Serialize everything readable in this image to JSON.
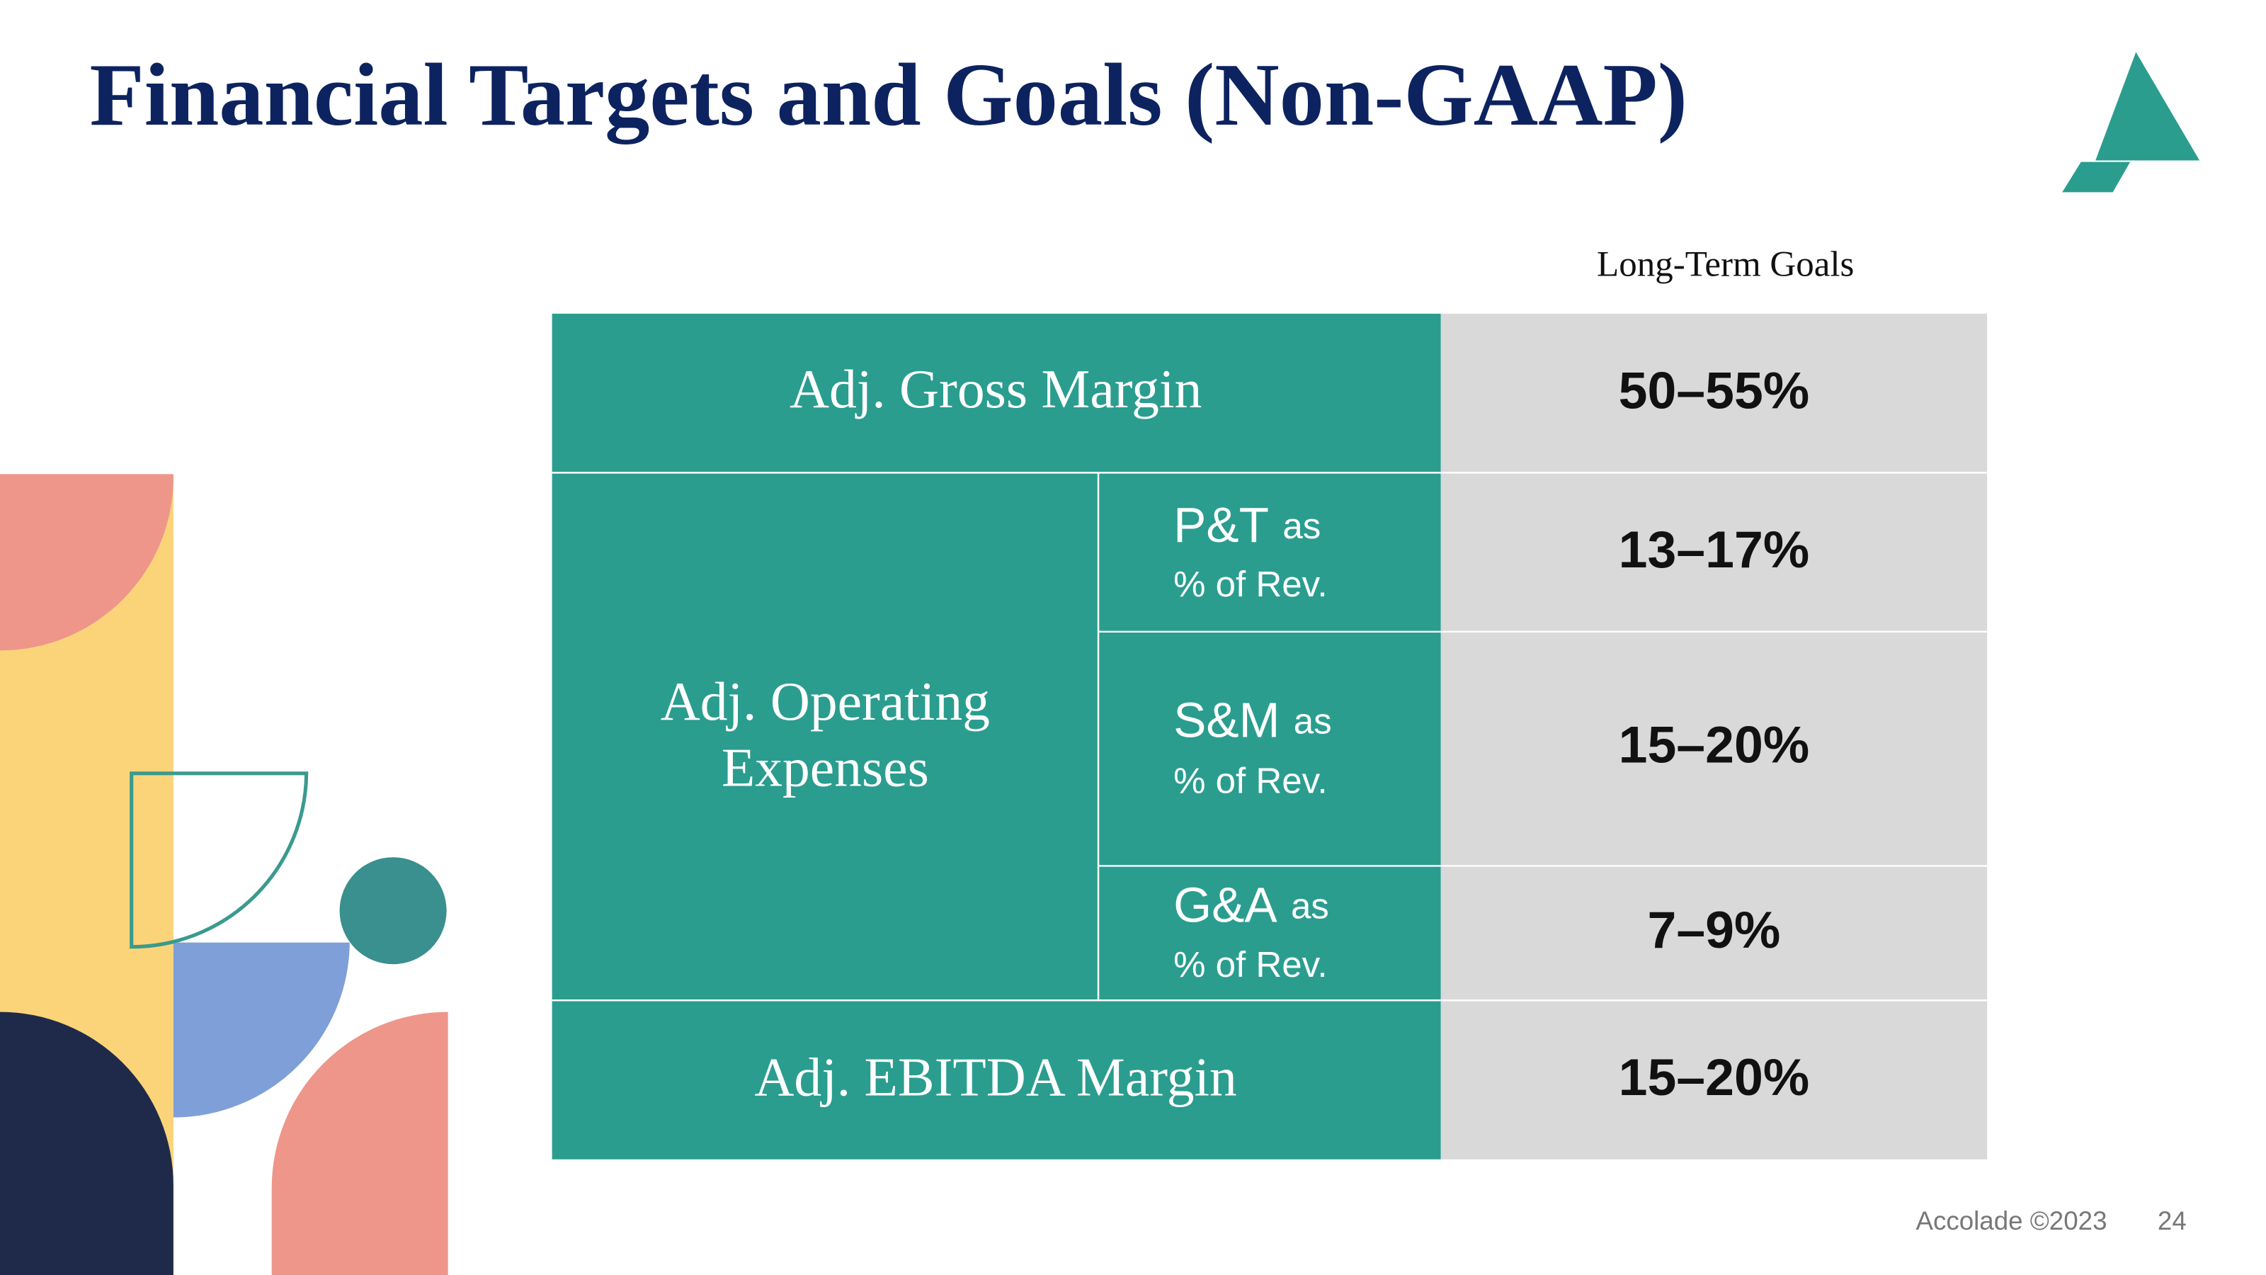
{
  "title": "Financial Targets and Goals (Non-GAAP)",
  "column_header": "Long-Term Goals",
  "table": {
    "rows": [
      {
        "label": "Adj. Gross Margin",
        "goal": "50–55%"
      },
      {
        "group_lines": [
          "Adj. Operating",
          "Expenses"
        ],
        "items": [
          {
            "label": "P&T",
            "suffix": "as",
            "line2": "% of Rev.",
            "goal": "13–17%"
          },
          {
            "label": "S&M",
            "suffix": "as",
            "line2": "% of Rev.",
            "goal": "15–20%"
          },
          {
            "label": "G&A",
            "suffix": "as",
            "line2": "% of Rev.",
            "goal": "7–9%"
          }
        ]
      },
      {
        "label": "Adj. EBITDA Margin",
        "goal": "15–20%"
      }
    ]
  },
  "footer": {
    "brand": "Accolade ©2023",
    "page": "24"
  }
}
